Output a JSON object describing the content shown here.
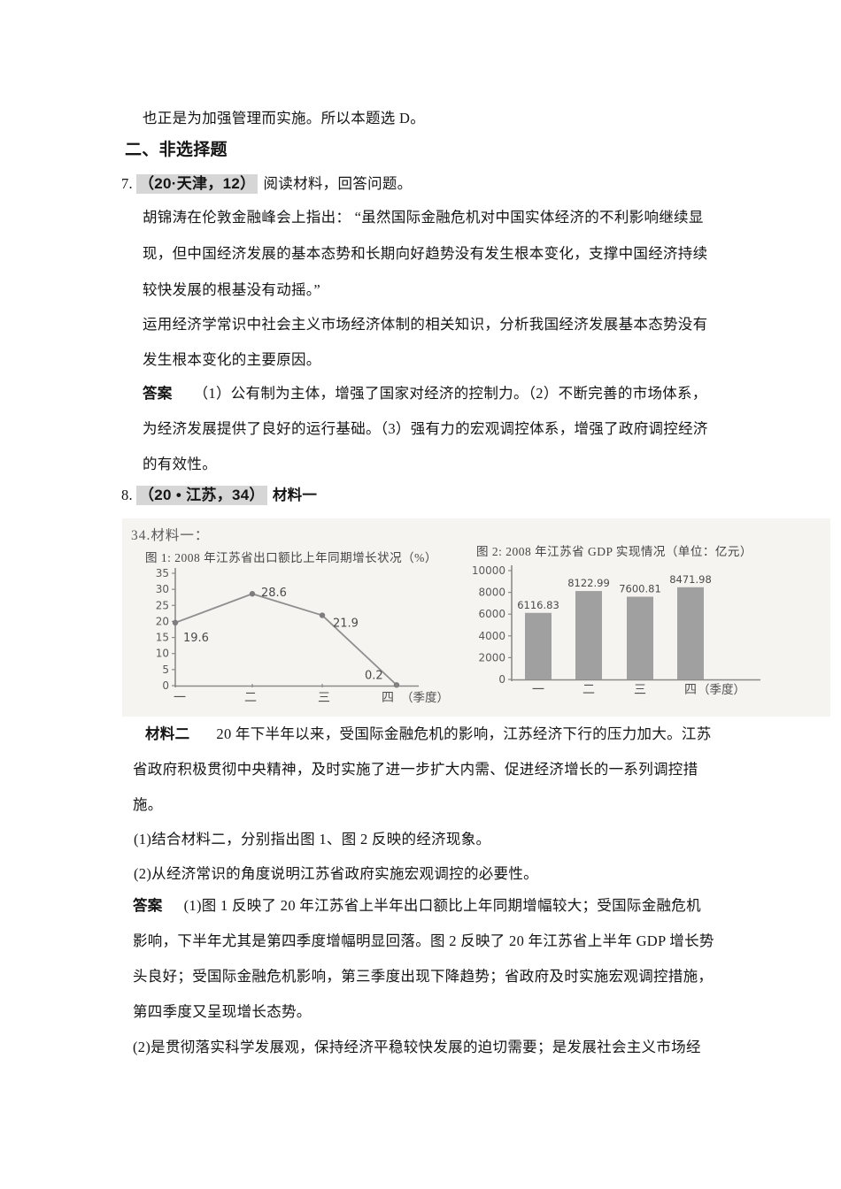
{
  "colors": {
    "highlight": "#d6d6d6",
    "scan_background": "#f5f4f1",
    "bar_fill": "#a0a0a0",
    "line_stroke": "#8a8a8a",
    "scan_text": "#4f4f4f"
  },
  "doc": {
    "intro_line": "也正是为加强管理而实施。所以本题选 D。",
    "section_heading": "二、非选择题",
    "q7": {
      "number": "7.",
      "tag": "（20·天津，12）",
      "lead": "阅读材料，回答问题。",
      "material_lines": [
        "胡锦涛在伦敦金融峰会上指出： “虽然国际金融危机对中国实体经济的不利影响继续显",
        "现，但中国经济发展的基本态势和长期向好趋势没有发生根本变化，支撑中国经济持续",
        "较快发展的根基没有动摇。”"
      ],
      "task_lines": [
        "运用经济学常识中社会主义市场经济体制的相关知识，分析我国经济发展基本态势没有",
        "发生根本变化的主要原因。"
      ],
      "answer_label": "答案",
      "answer_first": "（1）公有制为主体，增强了国家对经济的控制力。（2）不断完善的市场体系，",
      "answer_lines": [
        "为经济发展提供了良好的运行基础。（3）强有力的宏观调控体系，增强了政府调控经济",
        "的有效性。"
      ]
    },
    "q8": {
      "number": "8.",
      "tag": "（20 • 江苏，34）",
      "lead": "材料一",
      "scan": {
        "heading": "34.材料一：",
        "fig1_title": "图 1: 2008 年江苏省出口额比上年同期增长状况（%）",
        "fig2_title": "图 2: 2008 年江苏省 GDP 实现情况（单位：亿元）"
      },
      "material2_label": "材料二",
      "material2_first": "20 年下半年以来，受国际金融危机的影响，江苏经济下行的压力加大。江苏",
      "material2_lines": [
        "省政府积极贯彻中央精神，及时实施了进一步扩大内需、促进经济增长的一系列调控措",
        "施。"
      ],
      "question_lines": [
        "(1)结合材料二，分别指出图 1、图 2 反映的经济现象。",
        "(2)从经济常识的角度说明江苏省政府实施宏观调控的必要性。"
      ],
      "answer_label": "答案",
      "answer_first": "(1)图 1 反映了 20 年江苏省上半年出口额比上年同期增幅较大；受国际金融危机",
      "answer_lines": [
        "影响，下半年尤其是第四季度增幅明显回落。图 2 反映了 20 年江苏省上半年 GDP 增长势",
        "头良好；受国际金融危机影响，第三季度出现下降趋势；省政府及时实施宏观调控措施，",
        "第四季度又呈现增长态势。",
        "(2)是贯彻落实科学发展观，保持经济平稳较快发展的迫切需要；是发展社会主义市场经"
      ]
    }
  },
  "chart_data": [
    {
      "type": "line",
      "title": "图1: 2008年江苏省出口额比上年同期增长状况（%）",
      "categories": [
        "一",
        "二",
        "三",
        "四"
      ],
      "values": [
        19.6,
        28.6,
        21.9,
        0.2
      ],
      "point_labels": [
        "19.6",
        "28.6",
        "21.9",
        "0.2"
      ],
      "xlabel": "（季度）",
      "ylabel": "",
      "ylim": [
        0,
        35
      ],
      "yticks": [
        0,
        5,
        10,
        15,
        20,
        25,
        30,
        35
      ],
      "grid": false,
      "legend": "none"
    },
    {
      "type": "bar",
      "title": "图2: 2008年江苏省GDP实现情况（单位：亿元）",
      "categories": [
        "一",
        "二",
        "三",
        "四"
      ],
      "values": [
        6116.83,
        8122.99,
        7600.81,
        8471.98
      ],
      "bar_labels": [
        "6116.83",
        "8122.99",
        "7600.81",
        "8471.98"
      ],
      "xlabel": "（季度）",
      "ylabel": "",
      "ylim": [
        0,
        10000
      ],
      "yticks": [
        0,
        2000,
        4000,
        6000,
        8000,
        10000
      ],
      "grid": false,
      "legend": "none"
    }
  ]
}
